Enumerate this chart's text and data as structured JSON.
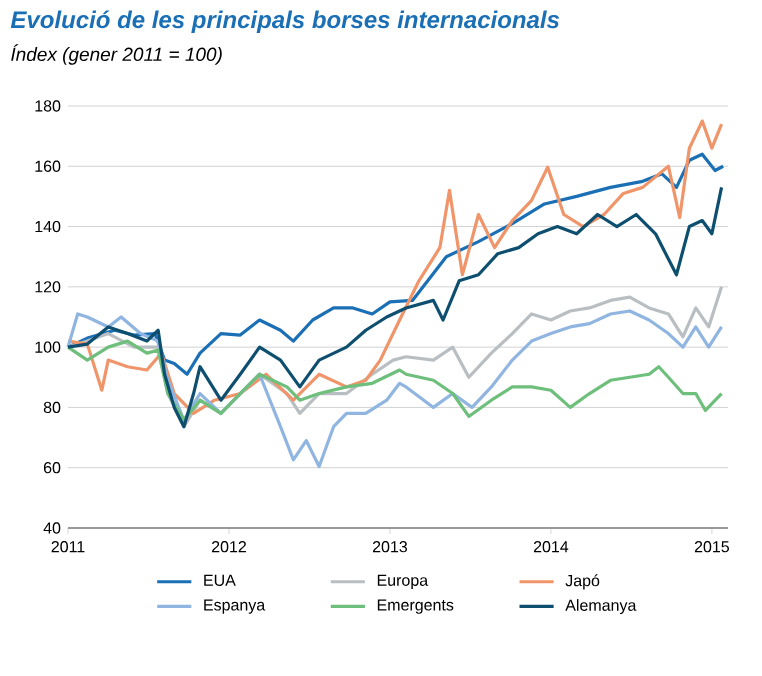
{
  "chart_data": {
    "type": "line",
    "title": "Evolució de les principals borses internacionals",
    "subtitle": "Índex (gener 2011 = 100)",
    "xlim": [
      2011,
      2015.1
    ],
    "xticks": [
      2011,
      2012,
      2013,
      2014,
      2015
    ],
    "ylim": [
      40,
      180
    ],
    "yticks": [
      40,
      60,
      80,
      100,
      120,
      140,
      160,
      180
    ],
    "grid": "y",
    "legend": "bottom",
    "series": [
      {
        "name": "EUA",
        "color": "#1a6fb5",
        "x": [
          2011.0,
          2011.12,
          2011.29,
          2011.41,
          2011.54,
          2011.6,
          2011.66,
          2011.74,
          2011.82,
          2011.95,
          2012.07,
          2012.19,
          2012.32,
          2012.4,
          2012.52,
          2012.65,
          2012.77,
          2012.89,
          2013.0,
          2013.14,
          2013.35,
          2013.55,
          2013.76,
          2013.96,
          2014.16,
          2014.37,
          2014.57,
          2014.69,
          2014.78,
          2014.86,
          2014.94,
          2015.02,
          2015.07
        ],
        "values": [
          100,
          103,
          105.6,
          104,
          104.5,
          95.7,
          94.6,
          91,
          98,
          104.5,
          104,
          109,
          105.6,
          102,
          109,
          113,
          113,
          111,
          115,
          115.5,
          130,
          135,
          141,
          147.5,
          150,
          153,
          155,
          157.5,
          153,
          162,
          164,
          158.6,
          160
        ]
      },
      {
        "name": "Europa",
        "color": "#b8bec2",
        "x": [
          2011.0,
          2011.12,
          2011.25,
          2011.41,
          2011.56,
          2011.62,
          2011.72,
          2011.82,
          2011.95,
          2012.07,
          2012.19,
          2012.36,
          2012.44,
          2012.56,
          2012.73,
          2012.89,
          2013.02,
          2013.1,
          2013.27,
          2013.39,
          2013.49,
          2013.63,
          2013.76,
          2013.88,
          2014.0,
          2014.12,
          2014.24,
          2014.37,
          2014.49,
          2014.61,
          2014.73,
          2014.82,
          2014.9,
          2014.98,
          2015.06
        ],
        "values": [
          100,
          102,
          104.5,
          100,
          100,
          84.6,
          73.6,
          82.4,
          78,
          84.6,
          91,
          84.6,
          78,
          84.6,
          84.6,
          91,
          95.7,
          96.8,
          95.7,
          100,
          90,
          98,
          104.5,
          111,
          109,
          112,
          113,
          115.5,
          116.6,
          113,
          111,
          103.4,
          113,
          106.7,
          120
        ]
      },
      {
        "name": "Japó",
        "color": "#f0956a",
        "x": [
          2011.0,
          2011.12,
          2011.21,
          2011.25,
          2011.37,
          2011.49,
          2011.58,
          2011.66,
          2011.78,
          2011.91,
          2012.07,
          2012.23,
          2012.4,
          2012.56,
          2012.73,
          2012.85,
          2012.94,
          2013.06,
          2013.18,
          2013.31,
          2013.37,
          2013.45,
          2013.55,
          2013.65,
          2013.76,
          2013.88,
          2013.98,
          2014.08,
          2014.2,
          2014.33,
          2014.45,
          2014.57,
          2014.73,
          2014.8,
          2014.86,
          2014.94,
          2015.0,
          2015.06
        ],
        "values": [
          102,
          101,
          85.7,
          95.7,
          93.5,
          92.4,
          98,
          84.6,
          78,
          82.4,
          84.6,
          91,
          82.4,
          91,
          86.8,
          89,
          95.7,
          109,
          122,
          133,
          152,
          124,
          144,
          133,
          142,
          148.7,
          159.7,
          144,
          140,
          144,
          151,
          153,
          160,
          143,
          166,
          175,
          166,
          174
        ]
      },
      {
        "name": "Espanya",
        "color": "#8fb5e0",
        "x": [
          2011.0,
          2011.06,
          2011.12,
          2011.25,
          2011.33,
          2011.45,
          2011.56,
          2011.62,
          2011.72,
          2011.82,
          2011.95,
          2012.07,
          2012.19,
          2012.32,
          2012.4,
          2012.48,
          2012.56,
          2012.65,
          2012.73,
          2012.85,
          2012.98,
          2013.06,
          2013.1,
          2013.27,
          2013.39,
          2013.51,
          2013.63,
          2013.76,
          2013.88,
          2014.0,
          2014.12,
          2014.24,
          2014.37,
          2014.49,
          2014.61,
          2014.73,
          2014.82,
          2014.9,
          2014.98,
          2015.06
        ],
        "values": [
          100,
          111,
          110,
          106.7,
          110,
          104.5,
          102,
          89,
          75.8,
          84.6,
          78,
          84.6,
          91,
          73.6,
          62.6,
          69,
          60.4,
          73.6,
          78,
          78,
          82.4,
          88,
          86.8,
          80,
          84.6,
          80,
          86.8,
          95.7,
          102,
          104.5,
          106.7,
          107.8,
          111,
          112,
          109,
          104.5,
          100,
          106.7,
          100,
          106.7
        ]
      },
      {
        "name": "Emergents",
        "color": "#6dbf7b",
        "x": [
          2011.0,
          2011.12,
          2011.25,
          2011.37,
          2011.49,
          2011.56,
          2011.62,
          2011.72,
          2011.82,
          2011.95,
          2012.07,
          2012.19,
          2012.36,
          2012.44,
          2012.56,
          2012.73,
          2012.89,
          2013.06,
          2013.1,
          2013.27,
          2013.39,
          2013.49,
          2013.63,
          2013.76,
          2013.88,
          2014.0,
          2014.12,
          2014.24,
          2014.37,
          2014.49,
          2014.61,
          2014.67,
          2014.73,
          2014.82,
          2014.9,
          2014.96,
          2015.06
        ],
        "values": [
          100,
          95.7,
          100,
          102,
          98,
          99,
          84.6,
          75.8,
          82.4,
          78,
          84.6,
          91,
          86.8,
          82.4,
          84.6,
          86.8,
          88,
          92.4,
          91,
          89,
          84.6,
          77,
          82.4,
          86.8,
          86.8,
          85.7,
          80,
          84.6,
          89,
          90,
          91,
          93.5,
          90,
          84.6,
          84.6,
          79,
          84.6
        ]
      },
      {
        "name": "Alemanya",
        "color": "#0e4f70",
        "x": [
          2011.0,
          2011.12,
          2011.25,
          2011.37,
          2011.49,
          2011.56,
          2011.6,
          2011.66,
          2011.72,
          2011.78,
          2011.82,
          2011.95,
          2012.07,
          2012.19,
          2012.32,
          2012.44,
          2012.56,
          2012.73,
          2012.85,
          2012.98,
          2013.1,
          2013.27,
          2013.33,
          2013.43,
          2013.55,
          2013.67,
          2013.8,
          2013.92,
          2014.04,
          2014.16,
          2014.29,
          2014.41,
          2014.53,
          2014.65,
          2014.78,
          2014.86,
          2014.94,
          2015.0,
          2015.06
        ],
        "values": [
          100,
          101,
          106.7,
          104.5,
          102,
          105.6,
          91,
          80,
          73.6,
          84.6,
          93.5,
          82.4,
          91,
          100,
          95.7,
          86.8,
          95.7,
          100,
          105.6,
          110,
          113,
          115.5,
          109,
          122,
          124,
          131,
          133,
          137.6,
          140,
          137.6,
          144,
          140,
          144,
          137.6,
          124,
          140,
          142,
          137.6,
          153
        ]
      }
    ]
  }
}
